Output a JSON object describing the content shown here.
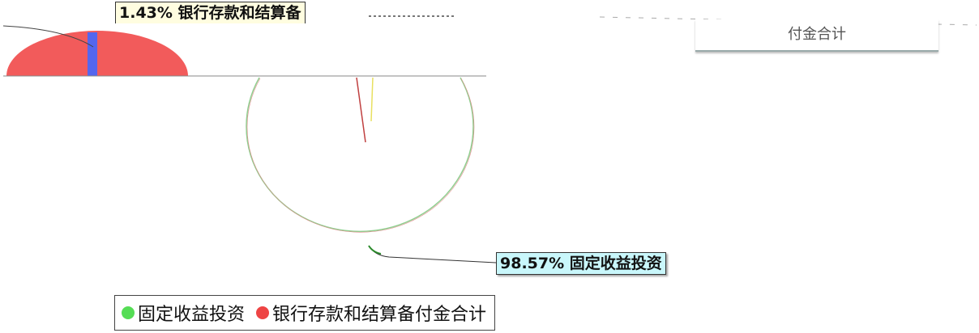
{
  "chart_data": {
    "type": "pie",
    "title": "",
    "series": [
      {
        "name": "",
        "slices": [
          {
            "label": "固定收益投资",
            "value": 98.57,
            "display": "98.57% 固定收益投资",
            "color": "#55dd55"
          },
          {
            "label": "银行存款和结算备付金合计",
            "value": 1.43,
            "display": "1.43% 银行存款和结算备",
            "color": "#ee4444"
          }
        ]
      }
    ],
    "legend": {
      "position": "bottom-left",
      "items": [
        {
          "label": "固定收益投资",
          "color": "#55dd55"
        },
        {
          "label": "银行存款和结算备付金合计",
          "color": "#ee4444"
        }
      ]
    }
  },
  "header_box_text": "付金合计",
  "colors": {
    "fill_red": "#f25b5b",
    "fill_blue": "#5566ee",
    "label_bg": "#c9f7fb"
  }
}
